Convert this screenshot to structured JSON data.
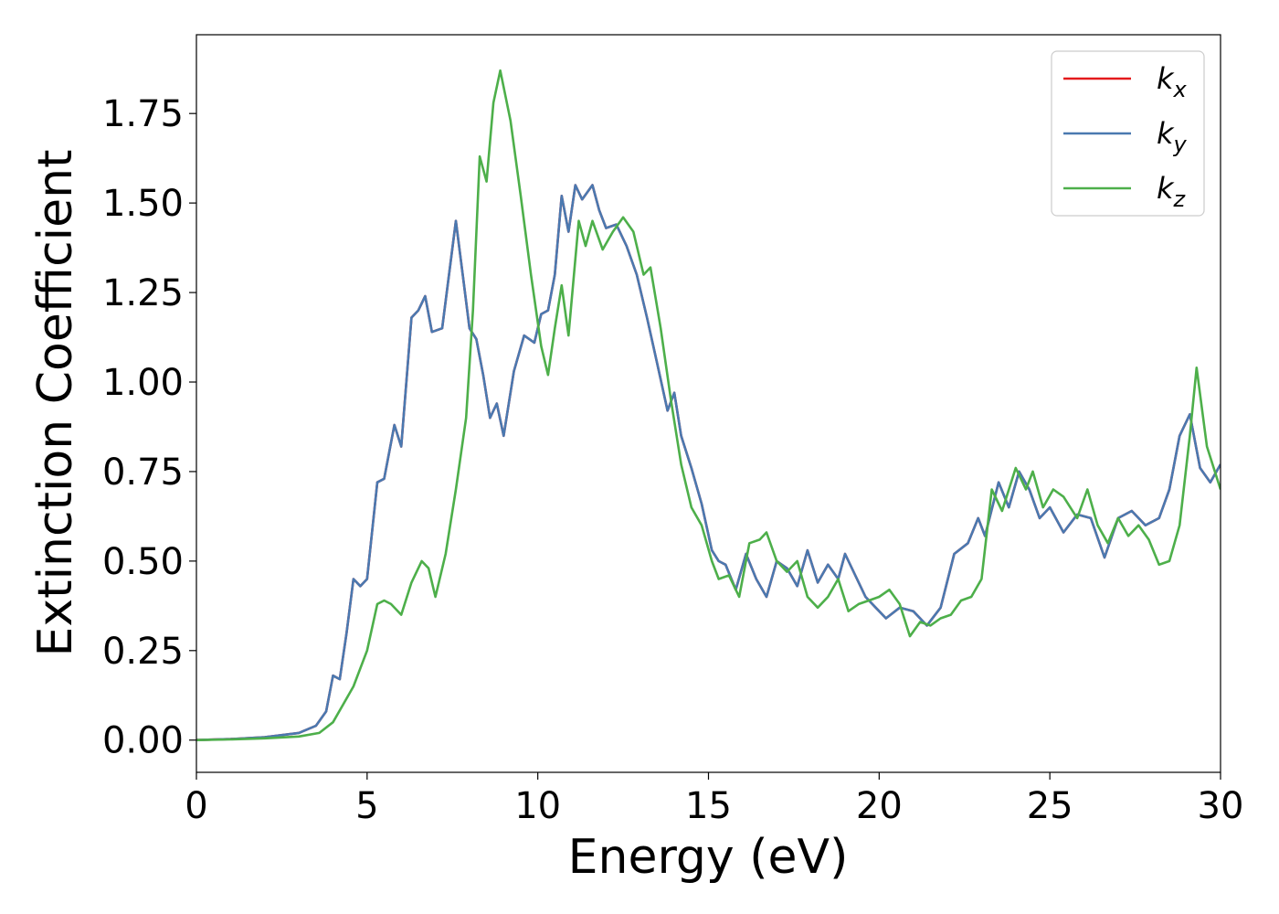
{
  "chart_data": {
    "type": "line",
    "xlabel": "Energy (eV)",
    "ylabel": "Extinction Coefficient",
    "xlim": [
      0,
      30
    ],
    "ylim": [
      -0.09,
      1.97
    ],
    "xticks": [
      0,
      5,
      10,
      15,
      20,
      25,
      30
    ],
    "yticks": [
      0.0,
      0.25,
      0.5,
      0.75,
      1.0,
      1.25,
      1.5,
      1.75
    ],
    "ytick_labels": [
      "0.00",
      "0.25",
      "0.50",
      "0.75",
      "1.00",
      "1.25",
      "1.50",
      "1.75"
    ],
    "grid": false,
    "legend_position": "top-right",
    "series": [
      {
        "name": "k_x",
        "label_base": "k",
        "label_sub": "x",
        "color": "#e41a1c",
        "points": [
          [
            0,
            0.0
          ],
          [
            1,
            0.003
          ],
          [
            2,
            0.008
          ],
          [
            3,
            0.02
          ],
          [
            3.5,
            0.04
          ],
          [
            3.8,
            0.08
          ],
          [
            4.0,
            0.18
          ],
          [
            4.2,
            0.17
          ],
          [
            4.4,
            0.3
          ],
          [
            4.6,
            0.45
          ],
          [
            4.8,
            0.43
          ],
          [
            5.0,
            0.45
          ],
          [
            5.3,
            0.72
          ],
          [
            5.5,
            0.73
          ],
          [
            5.8,
            0.88
          ],
          [
            6.0,
            0.82
          ],
          [
            6.3,
            1.18
          ],
          [
            6.5,
            1.2
          ],
          [
            6.7,
            1.24
          ],
          [
            6.9,
            1.14
          ],
          [
            7.2,
            1.15
          ],
          [
            7.6,
            1.45
          ],
          [
            7.8,
            1.3
          ],
          [
            8.0,
            1.15
          ],
          [
            8.2,
            1.12
          ],
          [
            8.4,
            1.02
          ],
          [
            8.6,
            0.9
          ],
          [
            8.8,
            0.94
          ],
          [
            9.0,
            0.85
          ],
          [
            9.3,
            1.03
          ],
          [
            9.6,
            1.13
          ],
          [
            9.9,
            1.11
          ],
          [
            10.1,
            1.19
          ],
          [
            10.3,
            1.2
          ],
          [
            10.5,
            1.3
          ],
          [
            10.7,
            1.52
          ],
          [
            10.9,
            1.42
          ],
          [
            11.1,
            1.55
          ],
          [
            11.3,
            1.51
          ],
          [
            11.6,
            1.55
          ],
          [
            11.8,
            1.48
          ],
          [
            12.0,
            1.43
          ],
          [
            12.3,
            1.44
          ],
          [
            12.6,
            1.38
          ],
          [
            12.9,
            1.3
          ],
          [
            13.2,
            1.18
          ],
          [
            13.5,
            1.05
          ],
          [
            13.8,
            0.92
          ],
          [
            14.0,
            0.97
          ],
          [
            14.2,
            0.85
          ],
          [
            14.5,
            0.76
          ],
          [
            14.8,
            0.66
          ],
          [
            15.1,
            0.53
          ],
          [
            15.3,
            0.5
          ],
          [
            15.5,
            0.49
          ],
          [
            15.8,
            0.42
          ],
          [
            16.1,
            0.52
          ],
          [
            16.4,
            0.45
          ],
          [
            16.7,
            0.4
          ],
          [
            17.0,
            0.5
          ],
          [
            17.3,
            0.48
          ],
          [
            17.6,
            0.43
          ],
          [
            17.9,
            0.53
          ],
          [
            18.2,
            0.44
          ],
          [
            18.5,
            0.49
          ],
          [
            18.8,
            0.45
          ],
          [
            19.0,
            0.52
          ],
          [
            19.3,
            0.46
          ],
          [
            19.6,
            0.4
          ],
          [
            19.9,
            0.37
          ],
          [
            20.2,
            0.34
          ],
          [
            20.6,
            0.37
          ],
          [
            21.0,
            0.36
          ],
          [
            21.4,
            0.32
          ],
          [
            21.8,
            0.37
          ],
          [
            22.2,
            0.52
          ],
          [
            22.6,
            0.55
          ],
          [
            22.9,
            0.62
          ],
          [
            23.1,
            0.57
          ],
          [
            23.5,
            0.72
          ],
          [
            23.8,
            0.65
          ],
          [
            24.1,
            0.75
          ],
          [
            24.4,
            0.7
          ],
          [
            24.7,
            0.62
          ],
          [
            25.0,
            0.65
          ],
          [
            25.4,
            0.58
          ],
          [
            25.8,
            0.63
          ],
          [
            26.2,
            0.62
          ],
          [
            26.6,
            0.51
          ],
          [
            27.0,
            0.62
          ],
          [
            27.4,
            0.64
          ],
          [
            27.8,
            0.6
          ],
          [
            28.2,
            0.62
          ],
          [
            28.5,
            0.7
          ],
          [
            28.8,
            0.85
          ],
          [
            29.1,
            0.91
          ],
          [
            29.4,
            0.76
          ],
          [
            29.7,
            0.72
          ],
          [
            30.0,
            0.77
          ]
        ]
      },
      {
        "name": "k_y",
        "label_base": "k",
        "label_sub": "y",
        "color": "#4a79b0",
        "points": [
          [
            0,
            0.0
          ],
          [
            1,
            0.003
          ],
          [
            2,
            0.008
          ],
          [
            3,
            0.02
          ],
          [
            3.5,
            0.04
          ],
          [
            3.8,
            0.08
          ],
          [
            4.0,
            0.18
          ],
          [
            4.2,
            0.17
          ],
          [
            4.4,
            0.3
          ],
          [
            4.6,
            0.45
          ],
          [
            4.8,
            0.43
          ],
          [
            5.0,
            0.45
          ],
          [
            5.3,
            0.72
          ],
          [
            5.5,
            0.73
          ],
          [
            5.8,
            0.88
          ],
          [
            6.0,
            0.82
          ],
          [
            6.3,
            1.18
          ],
          [
            6.5,
            1.2
          ],
          [
            6.7,
            1.24
          ],
          [
            6.9,
            1.14
          ],
          [
            7.2,
            1.15
          ],
          [
            7.6,
            1.45
          ],
          [
            7.8,
            1.3
          ],
          [
            8.0,
            1.15
          ],
          [
            8.2,
            1.12
          ],
          [
            8.4,
            1.02
          ],
          [
            8.6,
            0.9
          ],
          [
            8.8,
            0.94
          ],
          [
            9.0,
            0.85
          ],
          [
            9.3,
            1.03
          ],
          [
            9.6,
            1.13
          ],
          [
            9.9,
            1.11
          ],
          [
            10.1,
            1.19
          ],
          [
            10.3,
            1.2
          ],
          [
            10.5,
            1.3
          ],
          [
            10.7,
            1.52
          ],
          [
            10.9,
            1.42
          ],
          [
            11.1,
            1.55
          ],
          [
            11.3,
            1.51
          ],
          [
            11.6,
            1.55
          ],
          [
            11.8,
            1.48
          ],
          [
            12.0,
            1.43
          ],
          [
            12.3,
            1.44
          ],
          [
            12.6,
            1.38
          ],
          [
            12.9,
            1.3
          ],
          [
            13.2,
            1.18
          ],
          [
            13.5,
            1.05
          ],
          [
            13.8,
            0.92
          ],
          [
            14.0,
            0.97
          ],
          [
            14.2,
            0.85
          ],
          [
            14.5,
            0.76
          ],
          [
            14.8,
            0.66
          ],
          [
            15.1,
            0.53
          ],
          [
            15.3,
            0.5
          ],
          [
            15.5,
            0.49
          ],
          [
            15.8,
            0.42
          ],
          [
            16.1,
            0.52
          ],
          [
            16.4,
            0.45
          ],
          [
            16.7,
            0.4
          ],
          [
            17.0,
            0.5
          ],
          [
            17.3,
            0.48
          ],
          [
            17.6,
            0.43
          ],
          [
            17.9,
            0.53
          ],
          [
            18.2,
            0.44
          ],
          [
            18.5,
            0.49
          ],
          [
            18.8,
            0.45
          ],
          [
            19.0,
            0.52
          ],
          [
            19.3,
            0.46
          ],
          [
            19.6,
            0.4
          ],
          [
            19.9,
            0.37
          ],
          [
            20.2,
            0.34
          ],
          [
            20.6,
            0.37
          ],
          [
            21.0,
            0.36
          ],
          [
            21.4,
            0.32
          ],
          [
            21.8,
            0.37
          ],
          [
            22.2,
            0.52
          ],
          [
            22.6,
            0.55
          ],
          [
            22.9,
            0.62
          ],
          [
            23.1,
            0.57
          ],
          [
            23.5,
            0.72
          ],
          [
            23.8,
            0.65
          ],
          [
            24.1,
            0.75
          ],
          [
            24.4,
            0.7
          ],
          [
            24.7,
            0.62
          ],
          [
            25.0,
            0.65
          ],
          [
            25.4,
            0.58
          ],
          [
            25.8,
            0.63
          ],
          [
            26.2,
            0.62
          ],
          [
            26.6,
            0.51
          ],
          [
            27.0,
            0.62
          ],
          [
            27.4,
            0.64
          ],
          [
            27.8,
            0.6
          ],
          [
            28.2,
            0.62
          ],
          [
            28.5,
            0.7
          ],
          [
            28.8,
            0.85
          ],
          [
            29.1,
            0.91
          ],
          [
            29.4,
            0.76
          ],
          [
            29.7,
            0.72
          ],
          [
            30.0,
            0.77
          ]
        ]
      },
      {
        "name": "k_z",
        "label_base": "k",
        "label_sub": "z",
        "color": "#4daf4a",
        "points": [
          [
            0,
            0.0
          ],
          [
            1,
            0.002
          ],
          [
            2,
            0.005
          ],
          [
            3,
            0.01
          ],
          [
            3.6,
            0.02
          ],
          [
            4.0,
            0.05
          ],
          [
            4.3,
            0.1
          ],
          [
            4.6,
            0.15
          ],
          [
            5.0,
            0.25
          ],
          [
            5.3,
            0.38
          ],
          [
            5.5,
            0.39
          ],
          [
            5.7,
            0.38
          ],
          [
            6.0,
            0.35
          ],
          [
            6.3,
            0.44
          ],
          [
            6.6,
            0.5
          ],
          [
            6.8,
            0.48
          ],
          [
            7.0,
            0.4
          ],
          [
            7.3,
            0.52
          ],
          [
            7.6,
            0.7
          ],
          [
            7.9,
            0.9
          ],
          [
            8.1,
            1.2
          ],
          [
            8.3,
            1.63
          ],
          [
            8.5,
            1.56
          ],
          [
            8.7,
            1.78
          ],
          [
            8.9,
            1.87
          ],
          [
            9.2,
            1.73
          ],
          [
            9.5,
            1.52
          ],
          [
            9.8,
            1.3
          ],
          [
            10.1,
            1.1
          ],
          [
            10.3,
            1.02
          ],
          [
            10.5,
            1.15
          ],
          [
            10.7,
            1.27
          ],
          [
            10.9,
            1.13
          ],
          [
            11.2,
            1.45
          ],
          [
            11.4,
            1.38
          ],
          [
            11.6,
            1.45
          ],
          [
            11.9,
            1.37
          ],
          [
            12.2,
            1.42
          ],
          [
            12.5,
            1.46
          ],
          [
            12.8,
            1.42
          ],
          [
            13.1,
            1.3
          ],
          [
            13.3,
            1.32
          ],
          [
            13.6,
            1.15
          ],
          [
            13.9,
            0.95
          ],
          [
            14.2,
            0.77
          ],
          [
            14.5,
            0.65
          ],
          [
            14.8,
            0.6
          ],
          [
            15.1,
            0.5
          ],
          [
            15.3,
            0.45
          ],
          [
            15.6,
            0.46
          ],
          [
            15.9,
            0.4
          ],
          [
            16.2,
            0.55
          ],
          [
            16.5,
            0.56
          ],
          [
            16.7,
            0.58
          ],
          [
            17.0,
            0.5
          ],
          [
            17.3,
            0.47
          ],
          [
            17.6,
            0.5
          ],
          [
            17.9,
            0.4
          ],
          [
            18.2,
            0.37
          ],
          [
            18.5,
            0.4
          ],
          [
            18.8,
            0.45
          ],
          [
            19.1,
            0.36
          ],
          [
            19.4,
            0.38
          ],
          [
            19.7,
            0.39
          ],
          [
            20.0,
            0.4
          ],
          [
            20.3,
            0.42
          ],
          [
            20.6,
            0.38
          ],
          [
            20.9,
            0.29
          ],
          [
            21.2,
            0.33
          ],
          [
            21.5,
            0.32
          ],
          [
            21.8,
            0.34
          ],
          [
            22.1,
            0.35
          ],
          [
            22.4,
            0.39
          ],
          [
            22.7,
            0.4
          ],
          [
            23.0,
            0.45
          ],
          [
            23.3,
            0.7
          ],
          [
            23.6,
            0.64
          ],
          [
            24.0,
            0.76
          ],
          [
            24.3,
            0.7
          ],
          [
            24.5,
            0.75
          ],
          [
            24.8,
            0.65
          ],
          [
            25.1,
            0.7
          ],
          [
            25.4,
            0.68
          ],
          [
            25.8,
            0.62
          ],
          [
            26.1,
            0.7
          ],
          [
            26.4,
            0.6
          ],
          [
            26.7,
            0.55
          ],
          [
            27.0,
            0.62
          ],
          [
            27.3,
            0.57
          ],
          [
            27.6,
            0.6
          ],
          [
            27.9,
            0.56
          ],
          [
            28.2,
            0.49
          ],
          [
            28.5,
            0.5
          ],
          [
            28.8,
            0.6
          ],
          [
            29.1,
            0.85
          ],
          [
            29.3,
            1.04
          ],
          [
            29.6,
            0.82
          ],
          [
            30.0,
            0.7
          ]
        ]
      }
    ]
  }
}
